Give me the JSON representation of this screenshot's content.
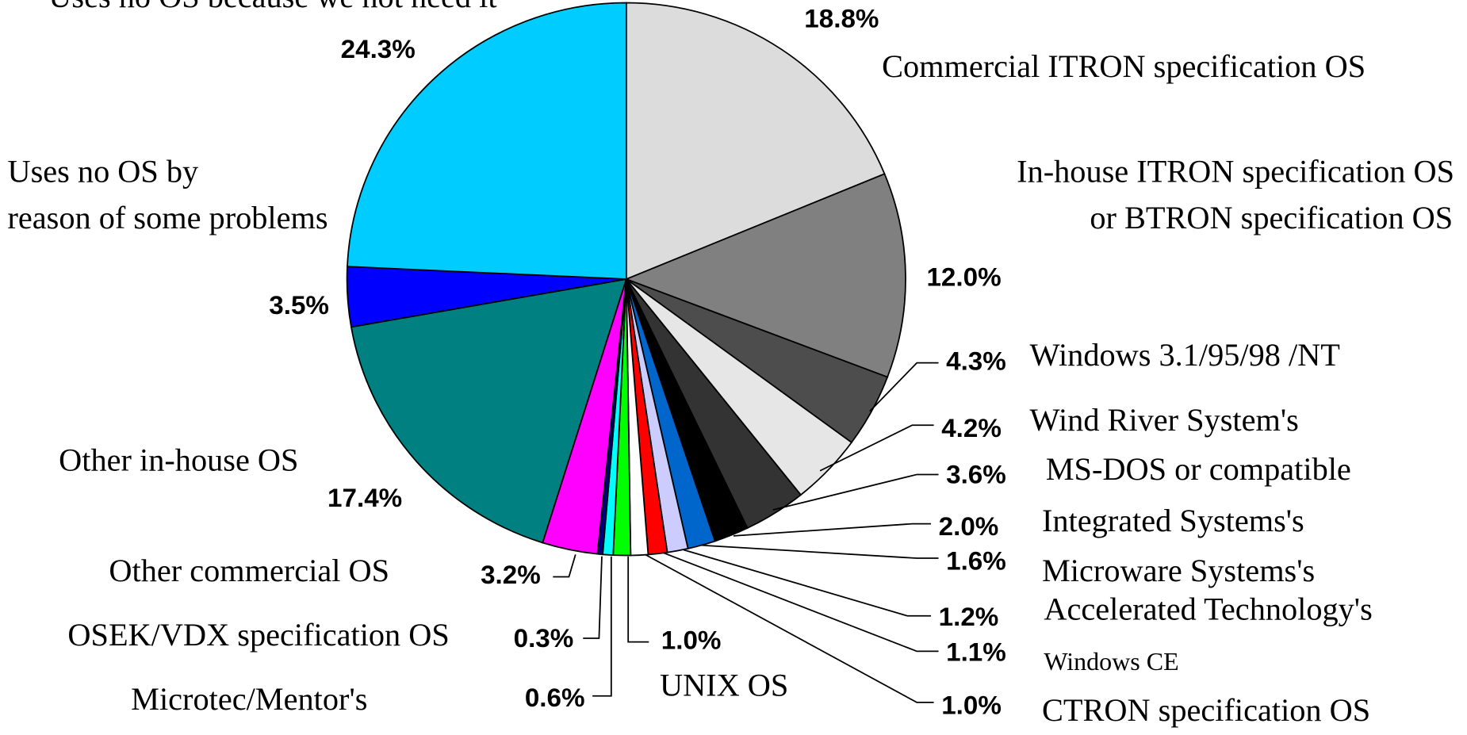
{
  "chart_data": {
    "type": "pie",
    "categories": [
      "Commercial ITRON specification OS",
      "In-house ITRON specification OS or BTRON specification OS",
      "Windows 3.1/95/98 /NT",
      "Wind River System's",
      "MS-DOS or compatible",
      "Integrated Systems's",
      "Microware Systems's",
      "Accelerated Technology's",
      "Windows CE",
      "CTRON specification OS",
      "UNIX OS",
      "Microtec/Mentor's",
      "OSEK/VDX specification OS",
      "Other commercial OS",
      "Other in-house OS",
      "Uses no OS by reason of some problems",
      "Uses no OS because we not need it"
    ],
    "values": [
      18.8,
      12.0,
      4.3,
      4.2,
      3.6,
      2.0,
      1.6,
      1.2,
      1.1,
      1.0,
      1.0,
      0.6,
      0.3,
      3.2,
      17.4,
      3.5,
      24.3
    ],
    "value_labels": [
      "18.8%",
      "12.0%",
      "4.3%",
      "4.2%",
      "3.6%",
      "2.0%",
      "1.6%",
      "1.2%",
      "1.1%",
      "1.0%",
      "1.0%",
      "0.6%",
      "0.3%",
      "3.2%",
      "17.4%",
      "3.5%",
      "24.3%"
    ],
    "colors": [
      "#dcdcdc",
      "#808080",
      "#4d4d4d",
      "#e6e6e6",
      "#333333",
      "#000000",
      "#0066cc",
      "#ccccff",
      "#ff0000",
      "#ffffff",
      "#00ff00",
      "#00ffff",
      "#000080",
      "#ff00ff",
      "#008080",
      "#0000ff",
      "#00ccff"
    ]
  }
}
